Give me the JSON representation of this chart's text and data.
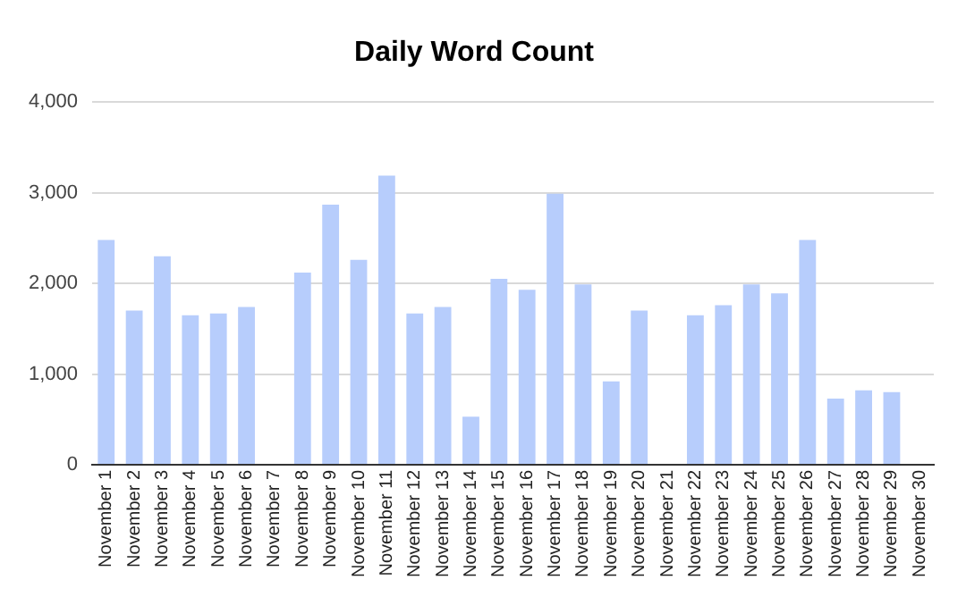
{
  "chart_data": {
    "type": "bar",
    "title": "Daily Word Count",
    "categories": [
      "November 1",
      "November 2",
      "November 3",
      "November 4",
      "November 5",
      "November 6",
      "November 7",
      "November 8",
      "November 9",
      "November 10",
      "November 11",
      "November 12",
      "November 13",
      "November 14",
      "November 15",
      "November 16",
      "November 17",
      "November 18",
      "November 19",
      "November 20",
      "November 21",
      "November 22",
      "November 23",
      "November 24",
      "November 25",
      "November 26",
      "November 27",
      "November 28",
      "November 29",
      "November 30"
    ],
    "values": [
      2480,
      1700,
      2300,
      1650,
      1670,
      1740,
      0,
      2120,
      2870,
      2260,
      3190,
      1670,
      1740,
      530,
      2050,
      1930,
      2990,
      1990,
      920,
      1700,
      0,
      1650,
      1760,
      1990,
      1890,
      2480,
      730,
      820,
      800,
      0
    ],
    "color": "#b7cdfc",
    "ylim": [
      0,
      4000
    ],
    "yticks": [
      {
        "value": 0,
        "label": "0"
      },
      {
        "value": 1000,
        "label": "1,000"
      },
      {
        "value": 2000,
        "label": "2,000"
      },
      {
        "value": 3000,
        "label": "3,000"
      },
      {
        "value": 4000,
        "label": "4,000"
      }
    ],
    "grid": "y"
  }
}
